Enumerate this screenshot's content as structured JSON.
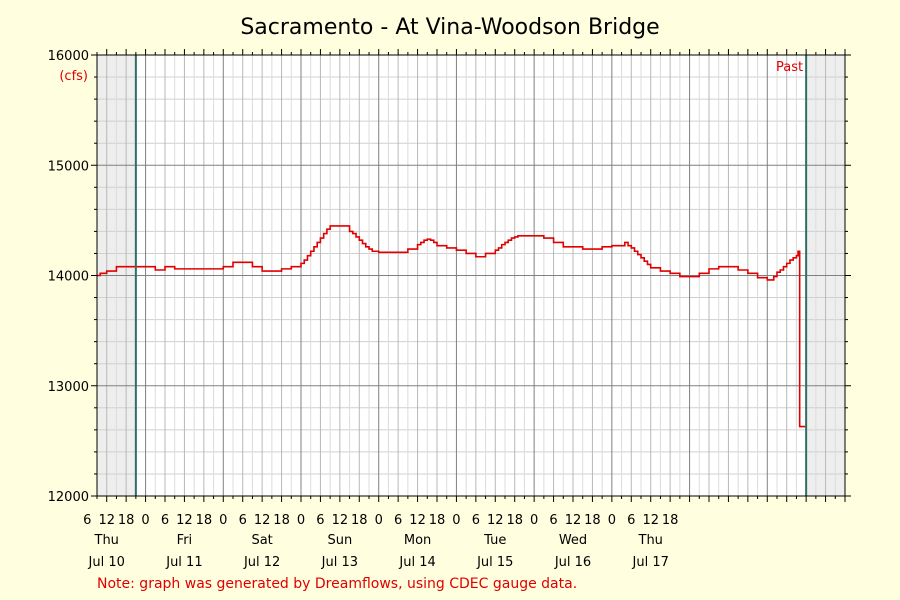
{
  "chart_data": {
    "type": "line",
    "title": "Sacramento - At Vina-Woodson Bridge",
    "ylabel": "(cfs)",
    "ylim": [
      12000,
      16000
    ],
    "yticks": [
      12000,
      13000,
      14000,
      15000,
      16000
    ],
    "xlim_hours": [
      -15,
      216
    ],
    "hour_tick_labels": [
      "6",
      "12",
      "18",
      "0",
      "6",
      "12",
      "18",
      "0",
      "6",
      "12",
      "18",
      "0",
      "6",
      "12",
      "18",
      "0",
      "6",
      "12",
      "18",
      "0",
      "6",
      "12",
      "18",
      "0",
      "6",
      "12",
      "18",
      "0",
      "6",
      "12",
      "18"
    ],
    "days": [
      {
        "weekday": "Thu",
        "date": "Jul 10"
      },
      {
        "weekday": "Fri",
        "date": "Jul 11"
      },
      {
        "weekday": "Sat",
        "date": "Jul 12"
      },
      {
        "weekday": "Sun",
        "date": "Jul 13"
      },
      {
        "weekday": "Mon",
        "date": "Jul 14"
      },
      {
        "weekday": "Tue",
        "date": "Jul 15"
      },
      {
        "weekday": "Wed",
        "date": "Jul 16"
      },
      {
        "weekday": "Thu",
        "date": "Jul 17"
      }
    ],
    "past_marker_label": "Past",
    "series": [
      {
        "color": "#e00000",
        "x_hours": [
          -15,
          -14,
          -12,
          -9,
          -3,
          3,
          6,
          9,
          12,
          21,
          24,
          27,
          33,
          36,
          39,
          42,
          45,
          48,
          49,
          50,
          51,
          52,
          53,
          54,
          55,
          56,
          57,
          60,
          63,
          64,
          65,
          66,
          67,
          68,
          69,
          70,
          72,
          75,
          78,
          81,
          84,
          85,
          86,
          87,
          88,
          89,
          90,
          93,
          96,
          99,
          102,
          105,
          108,
          109,
          110,
          111,
          112,
          113,
          114,
          115,
          117,
          120,
          123,
          126,
          129,
          132,
          135,
          138,
          141,
          144,
          147,
          148,
          149,
          150,
          151,
          152,
          153,
          154,
          155,
          156,
          159,
          162,
          165,
          168,
          171,
          174,
          177,
          180,
          183,
          186,
          189,
          192,
          193,
          194,
          195,
          196,
          197,
          198,
          199,
          200,
          201,
          201.5,
          202,
          204
        ],
        "y_cfs": [
          14000,
          14020,
          14040,
          14080,
          14080,
          14050,
          14080,
          14060,
          14060,
          14060,
          14080,
          14120,
          14080,
          14040,
          14040,
          14060,
          14080,
          14110,
          14140,
          14180,
          14220,
          14260,
          14300,
          14340,
          14380,
          14420,
          14450,
          14450,
          14400,
          14380,
          14350,
          14320,
          14290,
          14260,
          14240,
          14220,
          14210,
          14210,
          14210,
          14240,
          14280,
          14300,
          14320,
          14330,
          14320,
          14300,
          14270,
          14250,
          14230,
          14200,
          14170,
          14200,
          14230,
          14250,
          14280,
          14300,
          14320,
          14340,
          14350,
          14360,
          14360,
          14360,
          14340,
          14300,
          14260,
          14260,
          14240,
          14240,
          14260,
          14270,
          14270,
          14300,
          14270,
          14250,
          14220,
          14190,
          14160,
          14130,
          14100,
          14070,
          14040,
          14020,
          13990,
          13990,
          14020,
          14060,
          14080,
          14080,
          14050,
          14020,
          13980,
          13960,
          13960,
          13990,
          14030,
          14050,
          14080,
          14110,
          14140,
          14160,
          14180,
          14220,
          12630,
          12630
        ]
      }
    ],
    "grid": true,
    "note": "Note: graph was generated by Dreamflows, using CDEC gauge data."
  }
}
